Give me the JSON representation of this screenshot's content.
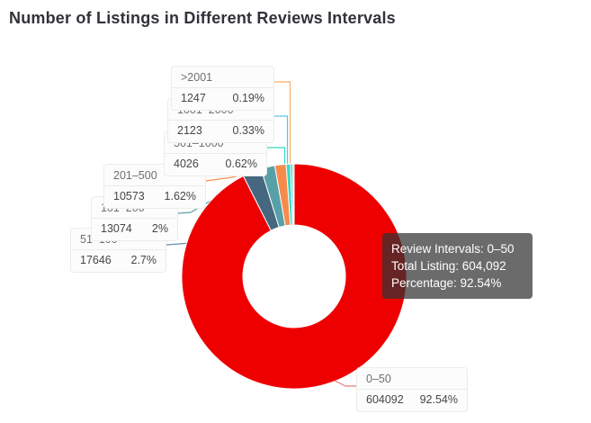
{
  "page": {
    "background": "#ffffff"
  },
  "chart_data": {
    "type": "pie",
    "subtype": "donut",
    "title": "Number of Listings in Different Reviews Intervals",
    "legend_position": "none",
    "series": [
      {
        "interval": "0–50",
        "count": "604092",
        "count_value": 604092,
        "pct": "92.54%",
        "pct_value": 92.54,
        "color": "#ee0000",
        "line_color": "#e97a7a"
      },
      {
        "interval": "51–100",
        "count": "17646",
        "count_value": 17646,
        "pct": "2.7%",
        "pct_value": 2.7,
        "color": "#45677f",
        "line_color": "#6590aa"
      },
      {
        "interval": "101–200",
        "count": "13074",
        "count_value": 13074,
        "pct": "2%",
        "pct_value": 2.0,
        "color": "#58a0a8",
        "line_color": "#58a0a8"
      },
      {
        "interval": "201–500",
        "count": "10573",
        "count_value": 10573,
        "pct": "1.62%",
        "pct_value": 1.62,
        "color": "#f78b4b",
        "line_color": "#f78b4b"
      },
      {
        "interval": "501–1000",
        "count": "4026",
        "count_value": 4026,
        "pct": "0.62%",
        "pct_value": 0.62,
        "color": "#35dac4",
        "line_color": "#35dac4"
      },
      {
        "interval": "1001–2000",
        "count": "2123",
        "count_value": 2123,
        "pct": "0.33%",
        "pct_value": 0.33,
        "color": "#58c4e9",
        "line_color": "#58c4e9"
      },
      {
        "interval": ">2001",
        "count": "1247",
        "count_value": 1247,
        "pct": "0.19%",
        "pct_value": 0.19,
        "color": "#f9a85a",
        "line_color": "#f9ad64"
      }
    ]
  },
  "tooltip": {
    "lines": [
      "Review Intervals: 0–50",
      "Total Listing: 604,092",
      "Percentage: 92.54%"
    ]
  }
}
